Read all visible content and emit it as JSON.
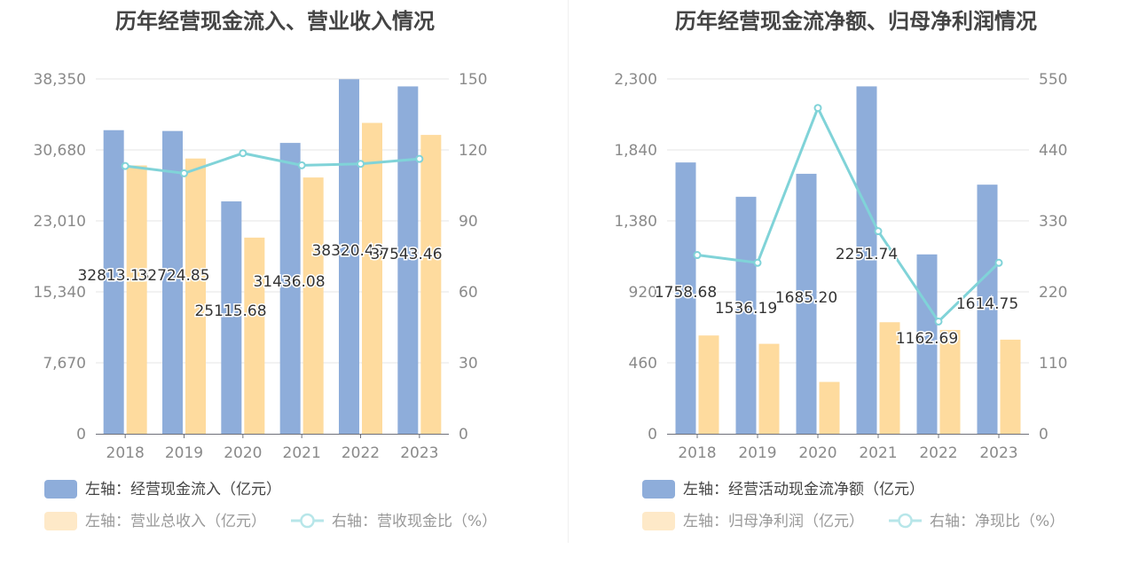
{
  "colors": {
    "bar_blue": "#8eadda",
    "bar_orange": "#fedb9e",
    "line_cyan": "#80d3d8",
    "grid": "#e4e4e4",
    "axis_text": "#8a8a8a",
    "legend_active": "#444444",
    "legend_inactive": "#999999",
    "legend_orange_swatch": "#fee9c8"
  },
  "chart_data": [
    {
      "type": "bar",
      "title": "历年经营现金流入、营业收入情况",
      "categories": [
        "2018",
        "2019",
        "2020",
        "2021",
        "2022",
        "2023"
      ],
      "ylim_left": [
        0,
        38350
      ],
      "yticks_left": [
        "0",
        "7,670",
        "15,340",
        "23,010",
        "30,680",
        "38,350"
      ],
      "ylim_right": [
        0,
        150
      ],
      "yticks_right": [
        "0",
        "30",
        "60",
        "90",
        "120",
        "150"
      ],
      "series": [
        {
          "name": "左轴：经营现金流入（亿元）",
          "axis": "left",
          "kind": "bar",
          "values": [
            32813.13,
            32724.85,
            25115.68,
            31436.08,
            38320.43,
            37543.46
          ],
          "labels": [
            "32813.13",
            "32724.85",
            "25115.68",
            "31436.08",
            "38320.43",
            "37543.46"
          ]
        },
        {
          "name": "左轴：营业总收入（亿元）",
          "axis": "left",
          "kind": "bar",
          "values": [
            29000,
            29750,
            21200,
            27700,
            33600,
            32300
          ]
        },
        {
          "name": "右轴：营收现金比（%）",
          "axis": "right",
          "kind": "line",
          "values": [
            113.2,
            110.1,
            118.6,
            113.5,
            114.1,
            116.2
          ]
        }
      ],
      "legend": "bottom"
    },
    {
      "type": "bar",
      "title": "历年经营现金流净额、归母净利润情况",
      "categories": [
        "2018",
        "2019",
        "2020",
        "2021",
        "2022",
        "2023"
      ],
      "ylim_left": [
        0,
        2300
      ],
      "yticks_left": [
        "0",
        "460",
        "920",
        "1,380",
        "1,840",
        "2,300"
      ],
      "ylim_right": [
        0,
        550
      ],
      "yticks_right": [
        "0",
        "110",
        "220",
        "330",
        "440",
        "550"
      ],
      "series": [
        {
          "name": "左轴：经营活动现金流净额（亿元）",
          "axis": "left",
          "kind": "bar",
          "values": [
            1758.68,
            1536.19,
            1685.2,
            2251.74,
            1162.69,
            1614.75
          ],
          "labels": [
            "1758.68",
            "1536.19",
            "1685.20",
            "2251.74",
            "1162.69",
            "1614.75"
          ]
        },
        {
          "name": "左轴：归母净利润（亿元）",
          "axis": "left",
          "kind": "bar",
          "values": [
            637,
            583,
            336,
            723,
            673,
            610
          ]
        },
        {
          "name": "右轴：净现比（%）",
          "axis": "right",
          "kind": "line",
          "values": [
            277,
            265,
            505,
            314,
            174,
            265
          ]
        }
      ],
      "legend": "bottom"
    }
  ]
}
